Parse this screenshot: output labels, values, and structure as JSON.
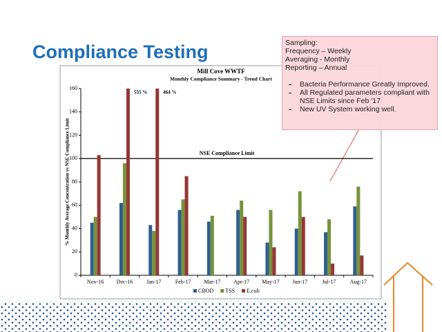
{
  "slide": {
    "title": "Compliance Testing",
    "callout": {
      "lines": [
        "Sampling:",
        "Frequency – Weekly",
        "Averaging - Monthly",
        "Reporting – Annual"
      ],
      "bullets": [
        "Bacteria Performance Greatly Improved.",
        "All Regulated parameters compliant with NSE Limits since Feb '17",
        "New UV System working well."
      ]
    }
  },
  "chart_data": {
    "type": "bar",
    "title": "Mill Cove WWTF",
    "subtitle": "Monthly Compliance Summary - Trend Chart",
    "y_label": "% Monthly Average Concentration vs NSE Compliance Limit",
    "categories": [
      "Nov-16",
      "Dec-16",
      "Jan-17",
      "Feb-17",
      "Mar-17",
      "Apr-17",
      "May-17",
      "Jun-17",
      "Jul-17",
      "Aug-17"
    ],
    "series": [
      {
        "name": "CBOD",
        "color": "#2f5f8f",
        "values": [
          45,
          62,
          43,
          56,
          46,
          56,
          28,
          40,
          37,
          59
        ]
      },
      {
        "name": "TSS",
        "color": "#77933c",
        "values": [
          50,
          96,
          38,
          65,
          51,
          64,
          56,
          72,
          48,
          76
        ]
      },
      {
        "name": "E.coli",
        "color": "#953735",
        "values": [
          103,
          555,
          464,
          85,
          null,
          50,
          24,
          50,
          10,
          17
        ],
        "value_labels": [
          null,
          "555 %",
          "464 %",
          null,
          null,
          null,
          null,
          null,
          null,
          null
        ]
      }
    ],
    "ylim": [
      0,
      160
    ],
    "yticks": [
      0,
      20,
      40,
      60,
      80,
      100,
      120,
      140,
      160
    ],
    "grid": false,
    "reference_line": {
      "value": 100,
      "label": "NSE Compliance Limit"
    },
    "legend": "bottom"
  }
}
